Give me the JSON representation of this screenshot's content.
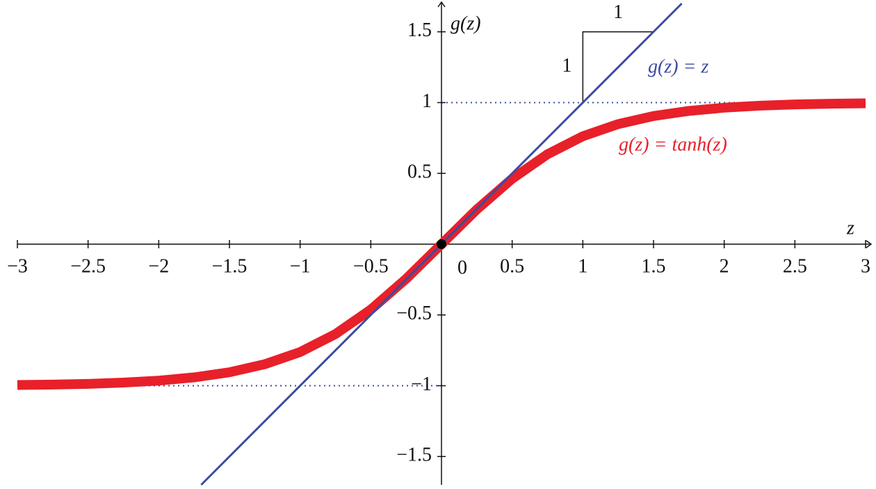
{
  "chart_data": {
    "type": "line",
    "xlabel": "z",
    "ylabel": "g(z)",
    "xlim": [
      -3,
      3
    ],
    "ylim": [
      -1.7,
      1.7
    ],
    "xticks": [
      {
        "value": -3,
        "label": "−3"
      },
      {
        "value": -2.5,
        "label": "−2.5"
      },
      {
        "value": -2,
        "label": "−2"
      },
      {
        "value": -1.5,
        "label": "−1.5"
      },
      {
        "value": -1,
        "label": "−1"
      },
      {
        "value": -0.5,
        "label": "−0.5"
      },
      0.5,
      1,
      1.5,
      2,
      2.5,
      3
    ],
    "yticks": [
      {
        "value": -1.5,
        "label": "−1.5"
      },
      {
        "value": -1,
        "label": "−1"
      },
      {
        "value": -0.5,
        "label": "−0.5"
      },
      0.5,
      1,
      1.5
    ],
    "origin": {
      "x": 0,
      "y": 0,
      "label": "0"
    },
    "asymptotes": [
      1,
      -1
    ],
    "series": [
      {
        "name": "g(z) = tanh(z)",
        "color": "#e8202a",
        "x": [
          -3,
          -2.75,
          -2.5,
          -2.25,
          -2,
          -1.75,
          -1.5,
          -1.25,
          -1,
          -0.75,
          -0.5,
          -0.25,
          0,
          0.25,
          0.5,
          0.75,
          1,
          1.25,
          1.5,
          1.75,
          2,
          2.25,
          2.5,
          2.75,
          3
        ],
        "values": [
          -0.995,
          -0.992,
          -0.987,
          -0.978,
          -0.964,
          -0.941,
          -0.905,
          -0.848,
          -0.762,
          -0.635,
          -0.462,
          -0.245,
          0,
          0.245,
          0.462,
          0.635,
          0.762,
          0.848,
          0.905,
          0.941,
          0.964,
          0.978,
          0.987,
          0.992,
          0.995
        ]
      },
      {
        "name": "g(z) = z",
        "color": "#3b4ca3",
        "x": [
          -1.7,
          1.7
        ],
        "values": [
          -1.7,
          1.7
        ]
      }
    ],
    "slope_triangle": {
      "x": [
        1,
        1,
        1.5
      ],
      "y": [
        1,
        1.5,
        1.5
      ],
      "rise_label": "1",
      "run_label": "1"
    }
  }
}
